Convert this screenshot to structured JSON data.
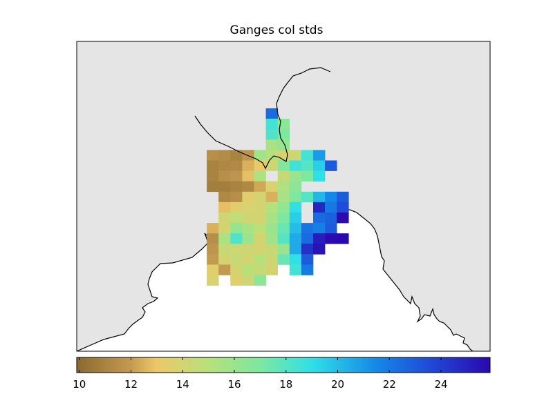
{
  "title": "Ganges col stds",
  "map": {
    "ocean_color": "#e5e5e5",
    "land_color": "#ffffff",
    "coastline_color": "#000000"
  },
  "colorbar": {
    "min": 9.9,
    "max": 25.9,
    "ticks": [
      "10",
      "12",
      "14",
      "16",
      "18",
      "20",
      "22",
      "24"
    ],
    "tick_values": [
      10,
      12,
      14,
      16,
      18,
      20,
      22,
      24
    ],
    "colormap_stops": [
      {
        "value": 9.9,
        "color": "#8a6a30"
      },
      {
        "value": 12.0,
        "color": "#c49a50"
      },
      {
        "value": 13.0,
        "color": "#edc868"
      },
      {
        "value": 15.0,
        "color": "#b8e07a"
      },
      {
        "value": 17.0,
        "color": "#7ce8a0"
      },
      {
        "value": 19.0,
        "color": "#30e0e6"
      },
      {
        "value": 21.5,
        "color": "#1488e8"
      },
      {
        "value": 23.5,
        "color": "#1f4cd8"
      },
      {
        "value": 25.9,
        "color": "#2a08b0"
      }
    ]
  },
  "chart_data": {
    "type": "heatmap",
    "title": "Ganges col stds",
    "value_range": [
      9.9,
      25.9
    ],
    "grid_origin_col": 0,
    "grid_origin_row": 0,
    "rows": [
      {
        "row": 0,
        "cells": [
          [
            6,
            22.5
          ]
        ]
      },
      {
        "row": 1,
        "cells": [
          [
            6,
            18.5
          ],
          [
            7,
            16.5
          ]
        ]
      },
      {
        "row": 2,
        "cells": [
          [
            6,
            18.2
          ],
          [
            7,
            17.0
          ]
        ]
      },
      {
        "row": 3,
        "cells": [
          [
            6,
            15.5
          ],
          [
            7,
            16.2
          ]
        ]
      },
      {
        "row": 4,
        "cells": [
          [
            1,
            11.5
          ],
          [
            2,
            11.4
          ],
          [
            3,
            11.0
          ],
          [
            4,
            11.8
          ],
          [
            5,
            15.8
          ],
          [
            6,
            15.0
          ],
          [
            7,
            14.0
          ],
          [
            8,
            14.2
          ],
          [
            9,
            18.5
          ],
          [
            10,
            21.0
          ]
        ]
      },
      {
        "row": 5,
        "cells": [
          [
            1,
            11.0
          ],
          [
            2,
            11.2
          ],
          [
            3,
            11.3
          ],
          [
            4,
            12.5
          ],
          [
            5,
            13.0
          ],
          [
            6,
            14.2
          ],
          [
            7,
            16.8
          ],
          [
            8,
            18.6
          ],
          [
            9,
            18.0
          ],
          [
            10,
            19.5
          ],
          [
            11,
            23.0
          ]
        ]
      },
      {
        "row": 6,
        "cells": [
          [
            1,
            11.0
          ],
          [
            2,
            11.5
          ],
          [
            3,
            11.8
          ],
          [
            4,
            12.8
          ],
          [
            5,
            15.3
          ],
          [
            7,
            14.5
          ],
          [
            8,
            16.0
          ],
          [
            9,
            17.0
          ],
          [
            10,
            19.0
          ]
        ]
      },
      {
        "row": 7,
        "cells": [
          [
            1,
            10.8
          ],
          [
            2,
            10.8
          ],
          [
            3,
            11.0
          ],
          [
            4,
            11.2
          ],
          [
            5,
            12.3
          ],
          [
            6,
            13.8
          ],
          [
            7,
            15.3
          ],
          [
            8,
            16.5
          ]
        ]
      },
      {
        "row": 8,
        "cells": [
          [
            2,
            11.2
          ],
          [
            3,
            11.5
          ],
          [
            4,
            13.5
          ],
          [
            5,
            14.0
          ],
          [
            6,
            12.5
          ],
          [
            7,
            15.5
          ],
          [
            8,
            17.0
          ],
          [
            9,
            18.0
          ],
          [
            10,
            20.2
          ],
          [
            11,
            21.5
          ],
          [
            12,
            23.0
          ]
        ]
      },
      {
        "row": 9,
        "cells": [
          [
            2,
            12.8
          ],
          [
            3,
            13.5
          ],
          [
            4,
            13.8
          ],
          [
            5,
            14.0
          ],
          [
            6,
            15.2
          ],
          [
            7,
            16.3
          ],
          [
            8,
            19.0
          ],
          [
            10,
            24.8
          ],
          [
            11,
            22.0
          ],
          [
            12,
            23.5
          ]
        ]
      },
      {
        "row": 10,
        "cells": [
          [
            2,
            14.2
          ],
          [
            3,
            14.8
          ],
          [
            4,
            14.2
          ],
          [
            5,
            14.0
          ],
          [
            6,
            15.5
          ],
          [
            7,
            17.0
          ],
          [
            8,
            19.5
          ],
          [
            10,
            22.5
          ],
          [
            11,
            22.8
          ],
          [
            12,
            25.8
          ]
        ]
      },
      {
        "row": 11,
        "cells": [
          [
            1,
            12.5
          ],
          [
            2,
            14.0
          ],
          [
            3,
            16.2
          ],
          [
            4,
            15.5
          ],
          [
            5,
            14.8
          ],
          [
            6,
            16.0
          ],
          [
            7,
            17.5
          ],
          [
            8,
            20.0
          ],
          [
            9,
            22.2
          ],
          [
            10,
            21.8
          ],
          [
            11,
            23.0
          ]
        ]
      },
      {
        "row": 12,
        "cells": [
          [
            1,
            11.5
          ],
          [
            2,
            15.5
          ],
          [
            3,
            18.2
          ],
          [
            4,
            16.0
          ],
          [
            5,
            14.0
          ],
          [
            6,
            15.8
          ],
          [
            7,
            18.0
          ],
          [
            8,
            20.5
          ],
          [
            9,
            22.5
          ],
          [
            10,
            25.2
          ],
          [
            11,
            25.8
          ],
          [
            12,
            25.9
          ]
        ]
      },
      {
        "row": 13,
        "cells": [
          [
            1,
            11.8
          ],
          [
            2,
            14.5
          ],
          [
            3,
            14.3
          ],
          [
            4,
            14.2
          ],
          [
            5,
            14.0
          ],
          [
            6,
            14.5
          ],
          [
            7,
            16.0
          ],
          [
            8,
            20.5
          ],
          [
            9,
            24.5
          ],
          [
            10,
            25.5
          ]
        ]
      },
      {
        "row": 14,
        "cells": [
          [
            1,
            12.0
          ],
          [
            2,
            14.0
          ],
          [
            3,
            14.5
          ],
          [
            4,
            14.0
          ],
          [
            5,
            15.0
          ],
          [
            6,
            14.2
          ],
          [
            7,
            17.5
          ],
          [
            8,
            19.0
          ],
          [
            9,
            23.0
          ]
        ]
      },
      {
        "row": 15,
        "cells": [
          [
            1,
            13.5
          ],
          [
            2,
            12.0
          ],
          [
            3,
            14.0
          ],
          [
            4,
            15.0
          ],
          [
            5,
            14.5
          ],
          [
            6,
            14.0
          ],
          [
            8,
            18.5
          ],
          [
            9,
            22.0
          ]
        ]
      },
      {
        "row": 16,
        "cells": [
          [
            1,
            13.8
          ],
          [
            3,
            13.5
          ],
          [
            4,
            14.2
          ],
          [
            5,
            16.5
          ]
        ]
      }
    ]
  }
}
